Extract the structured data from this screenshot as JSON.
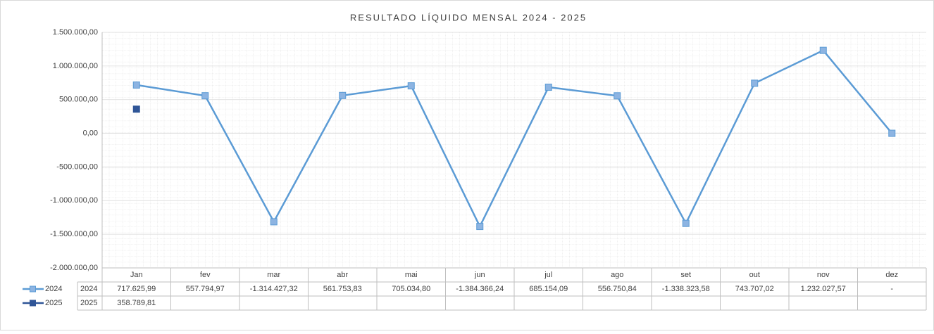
{
  "chart_data": {
    "type": "line",
    "title": "RESULTADO LÍQUIDO MENSAL 2024 - 2025",
    "categories": [
      "Jan",
      "fev",
      "mar",
      "abr",
      "mai",
      "jun",
      "jul",
      "ago",
      "set",
      "out",
      "nov",
      "dez"
    ],
    "series": [
      {
        "name": "2024",
        "color": "#5b9bd5",
        "marker_color": "#8db4e2",
        "values": [
          717625.99,
          557794.97,
          -1314427.32,
          561753.83,
          705034.8,
          -1384366.24,
          685154.09,
          556750.84,
          -1338323.58,
          743707.02,
          1232027.57,
          0
        ],
        "value_labels": [
          "717.625,99",
          "557.794,97",
          "-1.314.427,32",
          "561.753,83",
          "705.034,80",
          "-1.384.366,24",
          "685.154,09",
          "556.750,84",
          "-1.338.323,58",
          "743.707,02",
          "1.232.027,57",
          "-"
        ]
      },
      {
        "name": "2025",
        "color": "#2f5597",
        "marker_color": "#2f5597",
        "values": [
          358789.81,
          null,
          null,
          null,
          null,
          null,
          null,
          null,
          null,
          null,
          null,
          null
        ],
        "value_labels": [
          "358.789,81",
          null,
          null,
          null,
          null,
          null,
          null,
          null,
          null,
          null,
          null,
          null
        ]
      }
    ],
    "ylim": [
      -2000000,
      1500000
    ],
    "yticks": [
      {
        "value": 1500000,
        "label": "1.500.000,00"
      },
      {
        "value": 1000000,
        "label": "1.000.000,00"
      },
      {
        "value": 500000,
        "label": "500.000,00"
      },
      {
        "value": 0,
        "label": "0,00"
      },
      {
        "value": -500000,
        "label": "-500.000,00"
      },
      {
        "value": -1000000,
        "label": "-1.000.000,00"
      },
      {
        "value": -1500000,
        "label": "-1.500.000,00"
      },
      {
        "value": -2000000,
        "label": "-2.000.000,00"
      }
    ],
    "grid": true
  }
}
